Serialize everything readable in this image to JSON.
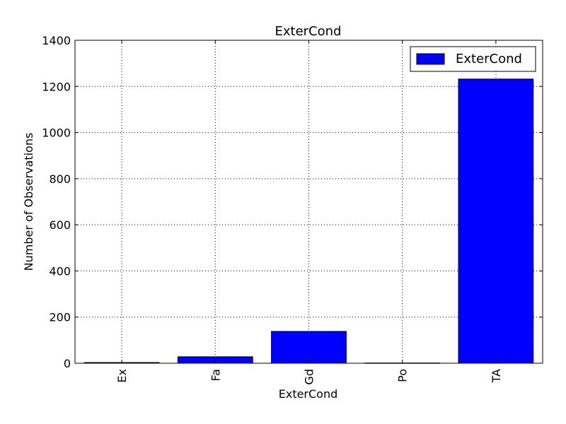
{
  "chart_data": {
    "type": "bar",
    "title": "ExterCond",
    "xlabel": "ExterCond",
    "ylabel": "Number of Observations",
    "categories": [
      "Ex",
      "Fa",
      "Gd",
      "Po",
      "TA"
    ],
    "series": [
      {
        "name": "ExterCond",
        "values": [
          3,
          28,
          138,
          1,
          1232
        ]
      }
    ],
    "ylim": [
      0,
      1400
    ],
    "yticks": [
      0,
      200,
      400,
      600,
      800,
      1000,
      1200,
      1400
    ],
    "grid": true,
    "legend": "top-right",
    "colors": {
      "bar_fill": "#0000ff",
      "bar_stroke": "#000000",
      "grid": "#000000"
    }
  }
}
